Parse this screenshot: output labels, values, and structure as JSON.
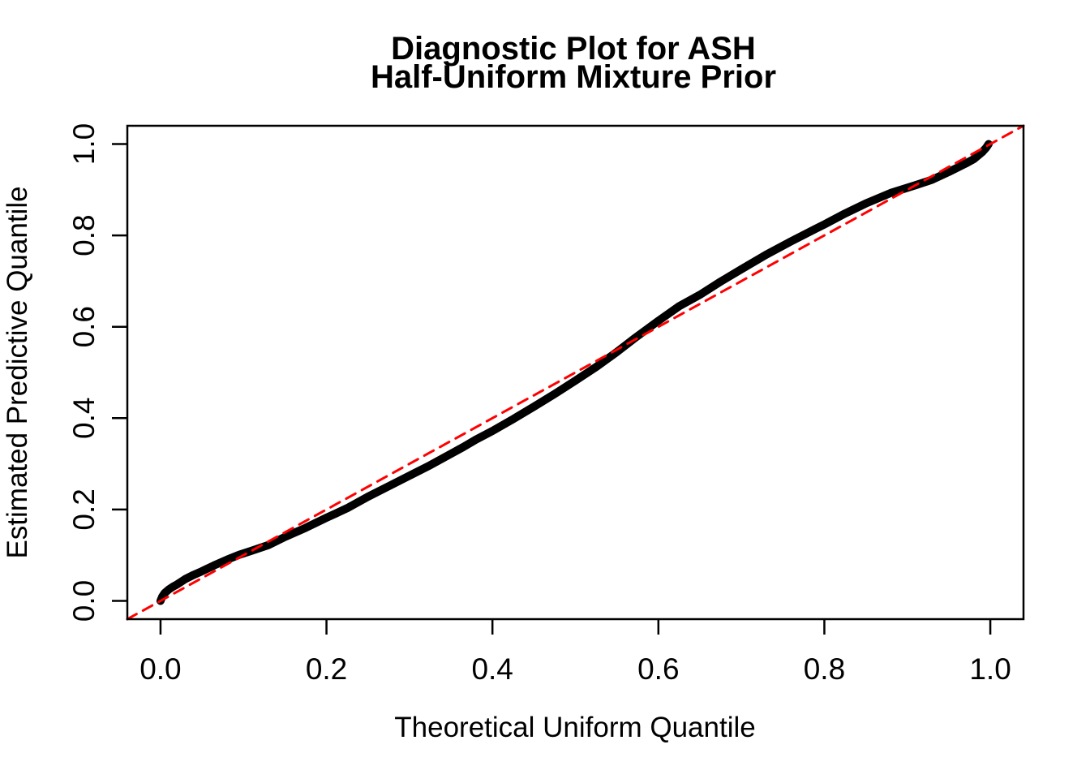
{
  "figure": {
    "title_line1": "Diagnostic Plot for ASH",
    "title_line2": "Half-Uniform Mixture Prior",
    "x_axis_label": "Theoretical Uniform Quantile",
    "y_axis_label": "Estimated Predictive Quantile",
    "x_tick_labels": [
      "0.0",
      "0.2",
      "0.4",
      "0.6",
      "0.8",
      "1.0"
    ],
    "y_tick_labels": [
      "0.0",
      "0.2",
      "0.4",
      "0.6",
      "0.8",
      "1.0"
    ]
  },
  "colors": {
    "background": "#FFFFFF",
    "axis": "#000000",
    "text": "#000000",
    "curve": "#000000",
    "reference_line": "#FF0000"
  },
  "chart_data": {
    "type": "line",
    "title": "Diagnostic Plot for ASH\nHalf-Uniform Mixture Prior",
    "xlabel": "Theoretical Uniform Quantile",
    "ylabel": "Estimated Predictive Quantile",
    "xlim": [
      -0.04,
      1.04
    ],
    "ylim": [
      -0.04,
      1.04
    ],
    "x_ticks": [
      0.0,
      0.2,
      0.4,
      0.6,
      0.8,
      1.0
    ],
    "y_ticks": [
      0.0,
      0.2,
      0.4,
      0.6,
      0.8,
      1.0
    ],
    "grid": false,
    "legend": "none",
    "series": [
      {
        "name": "estimated_predictive_quantile_curve",
        "type": "line",
        "style": "solid",
        "color": "#000000",
        "line_width": 10,
        "points": [
          [
            0.0,
            0.0
          ],
          [
            0.002,
            0.009
          ],
          [
            0.005,
            0.017
          ],
          [
            0.01,
            0.025
          ],
          [
            0.015,
            0.031
          ],
          [
            0.02,
            0.036
          ],
          [
            0.03,
            0.048
          ],
          [
            0.04,
            0.057
          ],
          [
            0.05,
            0.065
          ],
          [
            0.065,
            0.078
          ],
          [
            0.08,
            0.09
          ],
          [
            0.095,
            0.101
          ],
          [
            0.11,
            0.11
          ],
          [
            0.13,
            0.122
          ],
          [
            0.15,
            0.14
          ],
          [
            0.175,
            0.16
          ],
          [
            0.2,
            0.182
          ],
          [
            0.212,
            0.192
          ],
          [
            0.225,
            0.203
          ],
          [
            0.25,
            0.228
          ],
          [
            0.275,
            0.251
          ],
          [
            0.3,
            0.274
          ],
          [
            0.325,
            0.297
          ],
          [
            0.35,
            0.322
          ],
          [
            0.365,
            0.337
          ],
          [
            0.38,
            0.353
          ],
          [
            0.4,
            0.372
          ],
          [
            0.425,
            0.398
          ],
          [
            0.45,
            0.425
          ],
          [
            0.475,
            0.453
          ],
          [
            0.5,
            0.482
          ],
          [
            0.525,
            0.512
          ],
          [
            0.55,
            0.545
          ],
          [
            0.57,
            0.573
          ],
          [
            0.6,
            0.613
          ],
          [
            0.625,
            0.645
          ],
          [
            0.65,
            0.67
          ],
          [
            0.675,
            0.699
          ],
          [
            0.7,
            0.726
          ],
          [
            0.73,
            0.758
          ],
          [
            0.76,
            0.787
          ],
          [
            0.79,
            0.815
          ],
          [
            0.8,
            0.824
          ],
          [
            0.825,
            0.848
          ],
          [
            0.85,
            0.87
          ],
          [
            0.88,
            0.893
          ],
          [
            0.91,
            0.91
          ],
          [
            0.93,
            0.922
          ],
          [
            0.95,
            0.939
          ],
          [
            0.97,
            0.957
          ],
          [
            0.98,
            0.967
          ],
          [
            0.99,
            0.982
          ],
          [
            0.995,
            0.992
          ],
          [
            0.998,
            1.0
          ]
        ]
      },
      {
        "name": "identity_reference_line",
        "type": "line",
        "style": "dashed",
        "color": "#FF0000",
        "line_width": 3,
        "points": [
          [
            -0.04,
            -0.04
          ],
          [
            1.04,
            1.04
          ]
        ]
      }
    ]
  }
}
